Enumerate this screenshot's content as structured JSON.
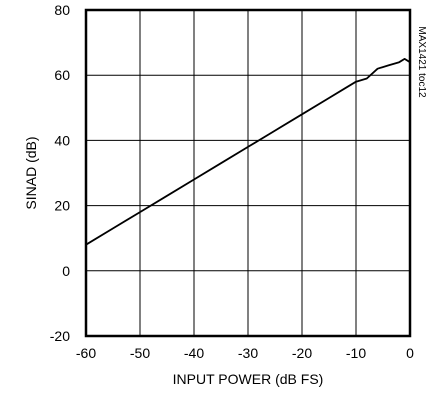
{
  "chart_data": {
    "type": "line",
    "title": "",
    "xlabel": "INPUT POWER (dB FS)",
    "ylabel": "SINAD (dB)",
    "xlim": [
      -60,
      0
    ],
    "ylim": [
      -20,
      80
    ],
    "xticks": [
      -60,
      -50,
      -40,
      -30,
      -20,
      -10,
      0
    ],
    "yticks": [
      -20,
      0,
      20,
      40,
      60,
      80
    ],
    "grid": true,
    "series": [
      {
        "x": [
          -60,
          -55,
          -50,
          -45,
          -40,
          -35,
          -30,
          -25,
          -20,
          -15,
          -12,
          -10,
          -8,
          -6,
          -4,
          -2,
          -1,
          0
        ],
        "y": [
          8,
          13,
          18,
          23,
          28,
          33,
          38,
          43,
          48,
          53,
          56,
          58,
          59,
          62,
          63,
          64,
          65,
          64
        ]
      }
    ],
    "annotation": "MAX1421 toc12"
  }
}
